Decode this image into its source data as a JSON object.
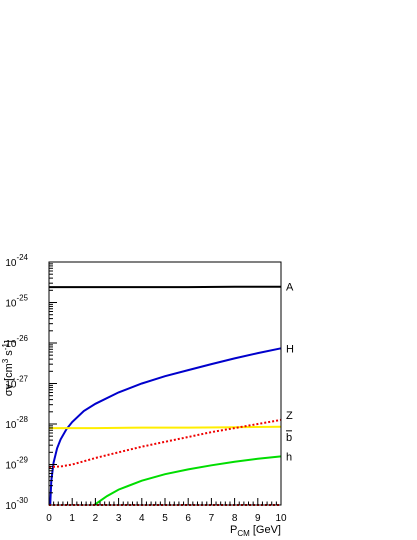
{
  "chart_data": {
    "type": "line",
    "xlabel": "P",
    "xlabel_sub": "CM",
    "xlabel_unit": " [GeV]",
    "ylabel": "σv [cm",
    "ylabel_sup1": "3",
    "ylabel_mid": " s",
    "ylabel_sup2": "-1",
    "ylabel_end": "]",
    "xlim": [
      0,
      10
    ],
    "ylim_log10": [
      -30,
      -24
    ],
    "y_scale": "log",
    "grid": false,
    "x_ticks": [
      "0",
      "1",
      "2",
      "3",
      "4",
      "5",
      "6",
      "7",
      "8",
      "9",
      "10"
    ],
    "y_ticks": [
      {
        "base": "10",
        "exp": "-24",
        "log": -24
      },
      {
        "base": "10",
        "exp": "-25",
        "log": -25
      },
      {
        "base": "10",
        "exp": "-26",
        "log": -26
      },
      {
        "base": "10",
        "exp": "-27",
        "log": -27
      },
      {
        "base": "10",
        "exp": "-28",
        "log": -28
      },
      {
        "base": "10",
        "exp": "-29",
        "log": -29
      },
      {
        "base": "10",
        "exp": "-30",
        "log": -30
      }
    ],
    "series": [
      {
        "name": "A",
        "color": "#000000",
        "style": "solid",
        "x": [
          0,
          2,
          4,
          6,
          8,
          10
        ],
        "log10_y": [
          -24.62,
          -24.62,
          -24.62,
          -24.62,
          -24.61,
          -24.61
        ]
      },
      {
        "name": "H",
        "color": "#0000cc",
        "style": "solid",
        "x": [
          0.05,
          0.1,
          0.2,
          0.35,
          0.5,
          0.75,
          1,
          1.5,
          2,
          3,
          4,
          5,
          6,
          7,
          8,
          9,
          10
        ],
        "log10_y": [
          -30.0,
          -29.4,
          -28.95,
          -28.6,
          -28.38,
          -28.13,
          -27.95,
          -27.68,
          -27.5,
          -27.22,
          -27.0,
          -26.82,
          -26.67,
          -26.52,
          -26.38,
          -26.25,
          -26.13
        ]
      },
      {
        "name": "Z",
        "color": "#ffee00",
        "style": "solid",
        "x": [
          0,
          2,
          4,
          6,
          8,
          10
        ],
        "log10_y": [
          -28.1,
          -28.1,
          -28.09,
          -28.09,
          -28.08,
          -28.07
        ]
      },
      {
        "name": "b",
        "color": "#ee0000",
        "style": "dotted",
        "x": [
          0,
          0.5,
          1,
          1.5,
          2,
          3,
          4,
          5,
          6,
          7,
          8,
          9,
          10
        ],
        "log10_y": [
          -29.06,
          -29.05,
          -29.0,
          -28.92,
          -28.84,
          -28.7,
          -28.56,
          -28.44,
          -28.32,
          -28.2,
          -28.1,
          -28.0,
          -27.9
        ]
      },
      {
        "name": "h",
        "color": "#00dd00",
        "style": "solid",
        "x": [
          1.95,
          2.5,
          3,
          4,
          5,
          6,
          7,
          8,
          9,
          10
        ],
        "log10_y": [
          -30.0,
          -29.78,
          -29.62,
          -29.4,
          -29.24,
          -29.12,
          -29.02,
          -28.93,
          -28.86,
          -28.8
        ]
      },
      {
        "name": "",
        "color": "#ee0000",
        "style": "dotted",
        "x": [
          0,
          10
        ],
        "log10_y": [
          -30.0,
          -30.0
        ]
      }
    ]
  }
}
